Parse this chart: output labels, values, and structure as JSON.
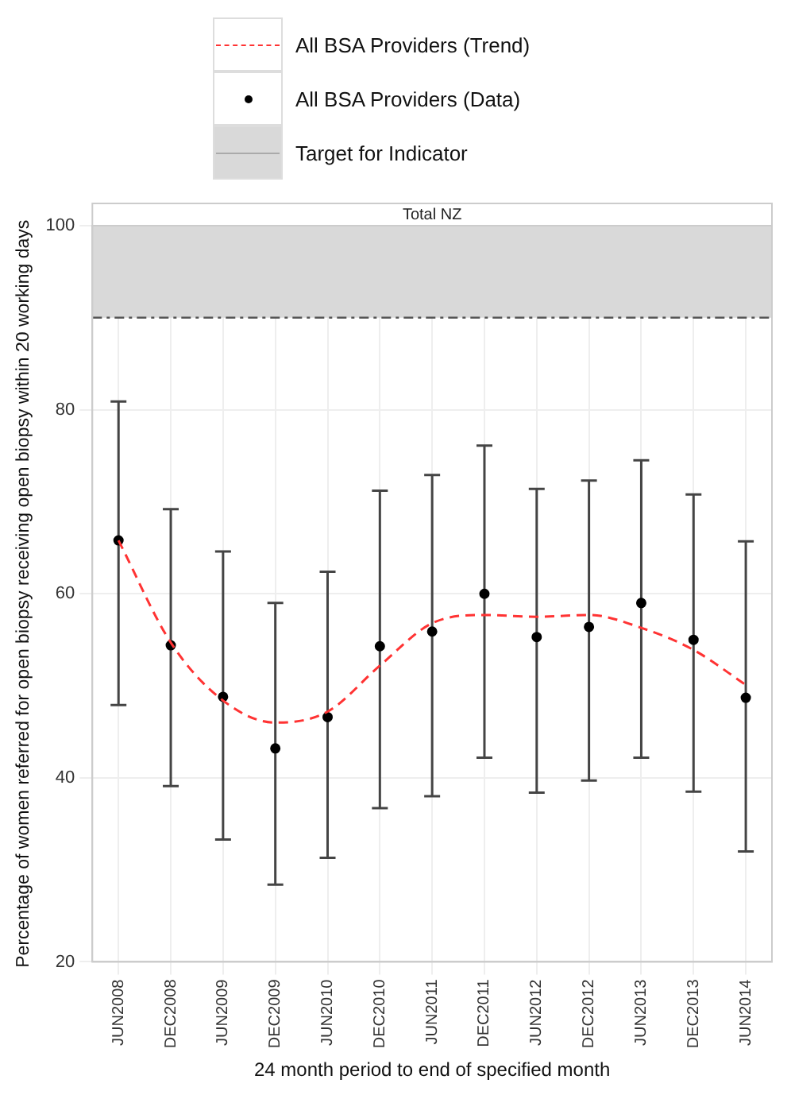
{
  "chart_data": {
    "type": "line",
    "subtitle": "Total NZ",
    "xlabel": "24 month period to end of specified month",
    "ylabel": "Percentage of women referred for open biopsy receiving open biopsy within 20 working days",
    "categories": [
      "JUN2008",
      "DEC2008",
      "JUN2009",
      "DEC2009",
      "JUN2010",
      "DEC2010",
      "JUN2011",
      "DEC2011",
      "JUN2012",
      "DEC2012",
      "JUN2013",
      "DEC2013",
      "JUN2014"
    ],
    "series": [
      {
        "name": "All BSA Providers (Trend)",
        "type": "line",
        "color": "#ff3333",
        "line_style": "dashed",
        "marker": "none",
        "values": [
          65.8,
          54.7,
          48.4,
          46.0,
          47.2,
          52.2,
          56.8,
          57.7,
          57.5,
          57.7,
          56.3,
          53.9,
          50.1
        ]
      },
      {
        "name": "All BSA Providers (Data)",
        "type": "scatter",
        "color": "#000000",
        "marker": "circle",
        "values": [
          65.8,
          54.4,
          48.8,
          43.2,
          46.6,
          54.3,
          55.9,
          60.0,
          55.3,
          56.4,
          59.0,
          55.0,
          48.7
        ],
        "errors": [
          [
            47.9,
            80.9
          ],
          [
            39.1,
            69.2
          ],
          [
            33.3,
            64.6
          ],
          [
            28.4,
            59.0
          ],
          [
            31.3,
            62.4
          ],
          [
            36.7,
            71.2
          ],
          [
            38.0,
            72.9
          ],
          [
            42.2,
            76.1
          ],
          [
            38.4,
            71.4
          ],
          [
            39.7,
            72.3
          ],
          [
            42.2,
            74.5
          ],
          [
            38.5,
            70.8
          ],
          [
            32.0,
            65.7
          ]
        ]
      }
    ],
    "bands": [
      {
        "axis": "y",
        "from": 90,
        "to": 100,
        "label": "Target for Indicator",
        "color": "#d9d9d9"
      }
    ],
    "ref_lines": [
      {
        "axis": "y",
        "value": 90,
        "color": "#555555",
        "line_style": "dashdot"
      }
    ],
    "ylim": [
      20,
      100
    ],
    "yticks": [
      20,
      40,
      60,
      80,
      100
    ],
    "grid": true,
    "legend": "top"
  }
}
